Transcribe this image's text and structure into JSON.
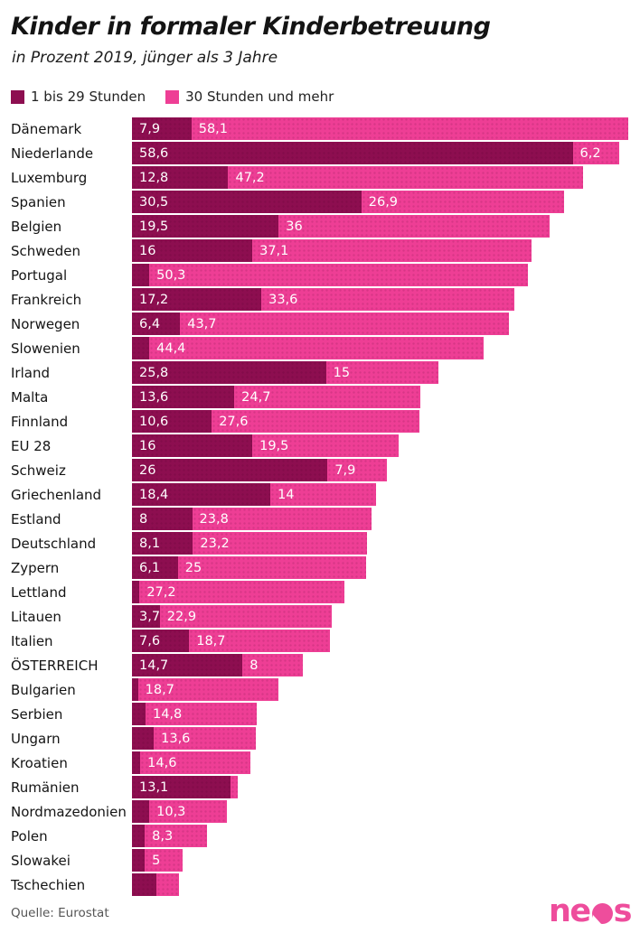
{
  "header": {
    "title": "Kinder in formaler Kinderbetreuung",
    "subtitle": "in Prozent 2019, jünger als 3 Jahre"
  },
  "legend": [
    {
      "label": "1 bis 29 Stunden",
      "color": "#8d0e50"
    },
    {
      "label": "30 Stunden und mehr",
      "color": "#ee3e95"
    }
  ],
  "footer": {
    "source": "Quelle: Eurostat",
    "logo_text_left": "ne",
    "logo_text_right": "s",
    "logo_color": "#ee4d9c"
  },
  "chart_data": {
    "type": "bar",
    "stacked": true,
    "orientation": "horizontal",
    "title": "Kinder in formaler Kinderbetreuung",
    "subtitle": "in Prozent 2019, jünger als 3 Jahre",
    "unit": "percent",
    "xlim": [
      0,
      67
    ],
    "grid": false,
    "legend_position": "top-left",
    "series_names": [
      "1 bis 29 Stunden",
      "30 Stunden und mehr"
    ],
    "series_colors": [
      "#8d0e50",
      "#ee3e95"
    ],
    "rows": [
      {
        "country": "Dänemark",
        "v1": 7.9,
        "v1_label": "7,9",
        "v2": 58.1,
        "v2_label": "58,1"
      },
      {
        "country": "Niederlande",
        "v1": 58.6,
        "v1_label": "58,6",
        "v2": 6.2,
        "v2_label": "6,2"
      },
      {
        "country": "Luxemburg",
        "v1": 12.8,
        "v1_label": "12,8",
        "v2": 47.2,
        "v2_label": "47,2"
      },
      {
        "country": "Spanien",
        "v1": 30.5,
        "v1_label": "30,5",
        "v2": 26.9,
        "v2_label": "26,9"
      },
      {
        "country": "Belgien",
        "v1": 19.5,
        "v1_label": "19,5",
        "v2": 36,
        "v2_label": "36"
      },
      {
        "country": "Schweden",
        "v1": 16,
        "v1_label": "16",
        "v2": 37.1,
        "v2_label": "37,1"
      },
      {
        "country": "Portugal",
        "v1": 2.3,
        "v1_label": "",
        "v2": 50.3,
        "v2_label": "50,3"
      },
      {
        "country": "Frankreich",
        "v1": 17.2,
        "v1_label": "17,2",
        "v2": 33.6,
        "v2_label": "33,6"
      },
      {
        "country": "Norwegen",
        "v1": 6.4,
        "v1_label": "6,4",
        "v2": 43.7,
        "v2_label": "43,7"
      },
      {
        "country": "Slowenien",
        "v1": 2.3,
        "v1_label": "",
        "v2": 44.4,
        "v2_label": "44,4"
      },
      {
        "country": "Irland",
        "v1": 25.8,
        "v1_label": "25,8",
        "v2": 15,
        "v2_label": "15"
      },
      {
        "country": "Malta",
        "v1": 13.6,
        "v1_label": "13,6",
        "v2": 24.7,
        "v2_label": "24,7"
      },
      {
        "country": "Finnland",
        "v1": 10.6,
        "v1_label": "10,6",
        "v2": 27.6,
        "v2_label": "27,6"
      },
      {
        "country": "EU 28",
        "v1": 16,
        "v1_label": "16",
        "v2": 19.5,
        "v2_label": "19,5"
      },
      {
        "country": "Schweiz",
        "v1": 26,
        "v1_label": "26",
        "v2": 7.9,
        "v2_label": "7,9"
      },
      {
        "country": "Griechenland",
        "v1": 18.4,
        "v1_label": "18,4",
        "v2": 14,
        "v2_label": "14"
      },
      {
        "country": "Estland",
        "v1": 8,
        "v1_label": "8",
        "v2": 23.8,
        "v2_label": "23,8"
      },
      {
        "country": "Deutschland",
        "v1": 8.1,
        "v1_label": "8,1",
        "v2": 23.2,
        "v2_label": "23,2"
      },
      {
        "country": "Zypern",
        "v1": 6.1,
        "v1_label": "6,1",
        "v2": 25,
        "v2_label": "25"
      },
      {
        "country": "Lettland",
        "v1": 1.0,
        "v1_label": "",
        "v2": 27.2,
        "v2_label": "27,2"
      },
      {
        "country": "Litauen",
        "v1": 3.7,
        "v1_label": "3,7",
        "v2": 22.9,
        "v2_label": "22,9"
      },
      {
        "country": "Italien",
        "v1": 7.6,
        "v1_label": "7,6",
        "v2": 18.7,
        "v2_label": "18,7"
      },
      {
        "country": "ÖSTERREICH",
        "v1": 14.7,
        "v1_label": "14,7",
        "v2": 8,
        "v2_label": "8"
      },
      {
        "country": "Bulgarien",
        "v1": 0.8,
        "v1_label": "",
        "v2": 18.7,
        "v2_label": "18,7"
      },
      {
        "country": "Serbien",
        "v1": 1.8,
        "v1_label": "",
        "v2": 14.8,
        "v2_label": "14,8"
      },
      {
        "country": "Ungarn",
        "v1": 2.9,
        "v1_label": "",
        "v2": 13.6,
        "v2_label": "13,6"
      },
      {
        "country": "Kroatien",
        "v1": 1.1,
        "v1_label": "",
        "v2": 14.6,
        "v2_label": "14,6"
      },
      {
        "country": "Rumänien",
        "v1": 13.1,
        "v1_label": "13,1",
        "v2": 1.0,
        "v2_label": ""
      },
      {
        "country": "Nordmazedonien",
        "v1": 2.3,
        "v1_label": "",
        "v2": 10.3,
        "v2_label": "10,3"
      },
      {
        "country": "Polen",
        "v1": 1.7,
        "v1_label": "",
        "v2": 8.3,
        "v2_label": "8,3"
      },
      {
        "country": "Slowakei",
        "v1": 1.7,
        "v1_label": "",
        "v2": 5,
        "v2_label": "5"
      },
      {
        "country": "Tschechien",
        "v1": 3.3,
        "v1_label": "",
        "v2": 3.0,
        "v2_label": ""
      }
    ],
    "source": "Quelle: Eurostat"
  }
}
